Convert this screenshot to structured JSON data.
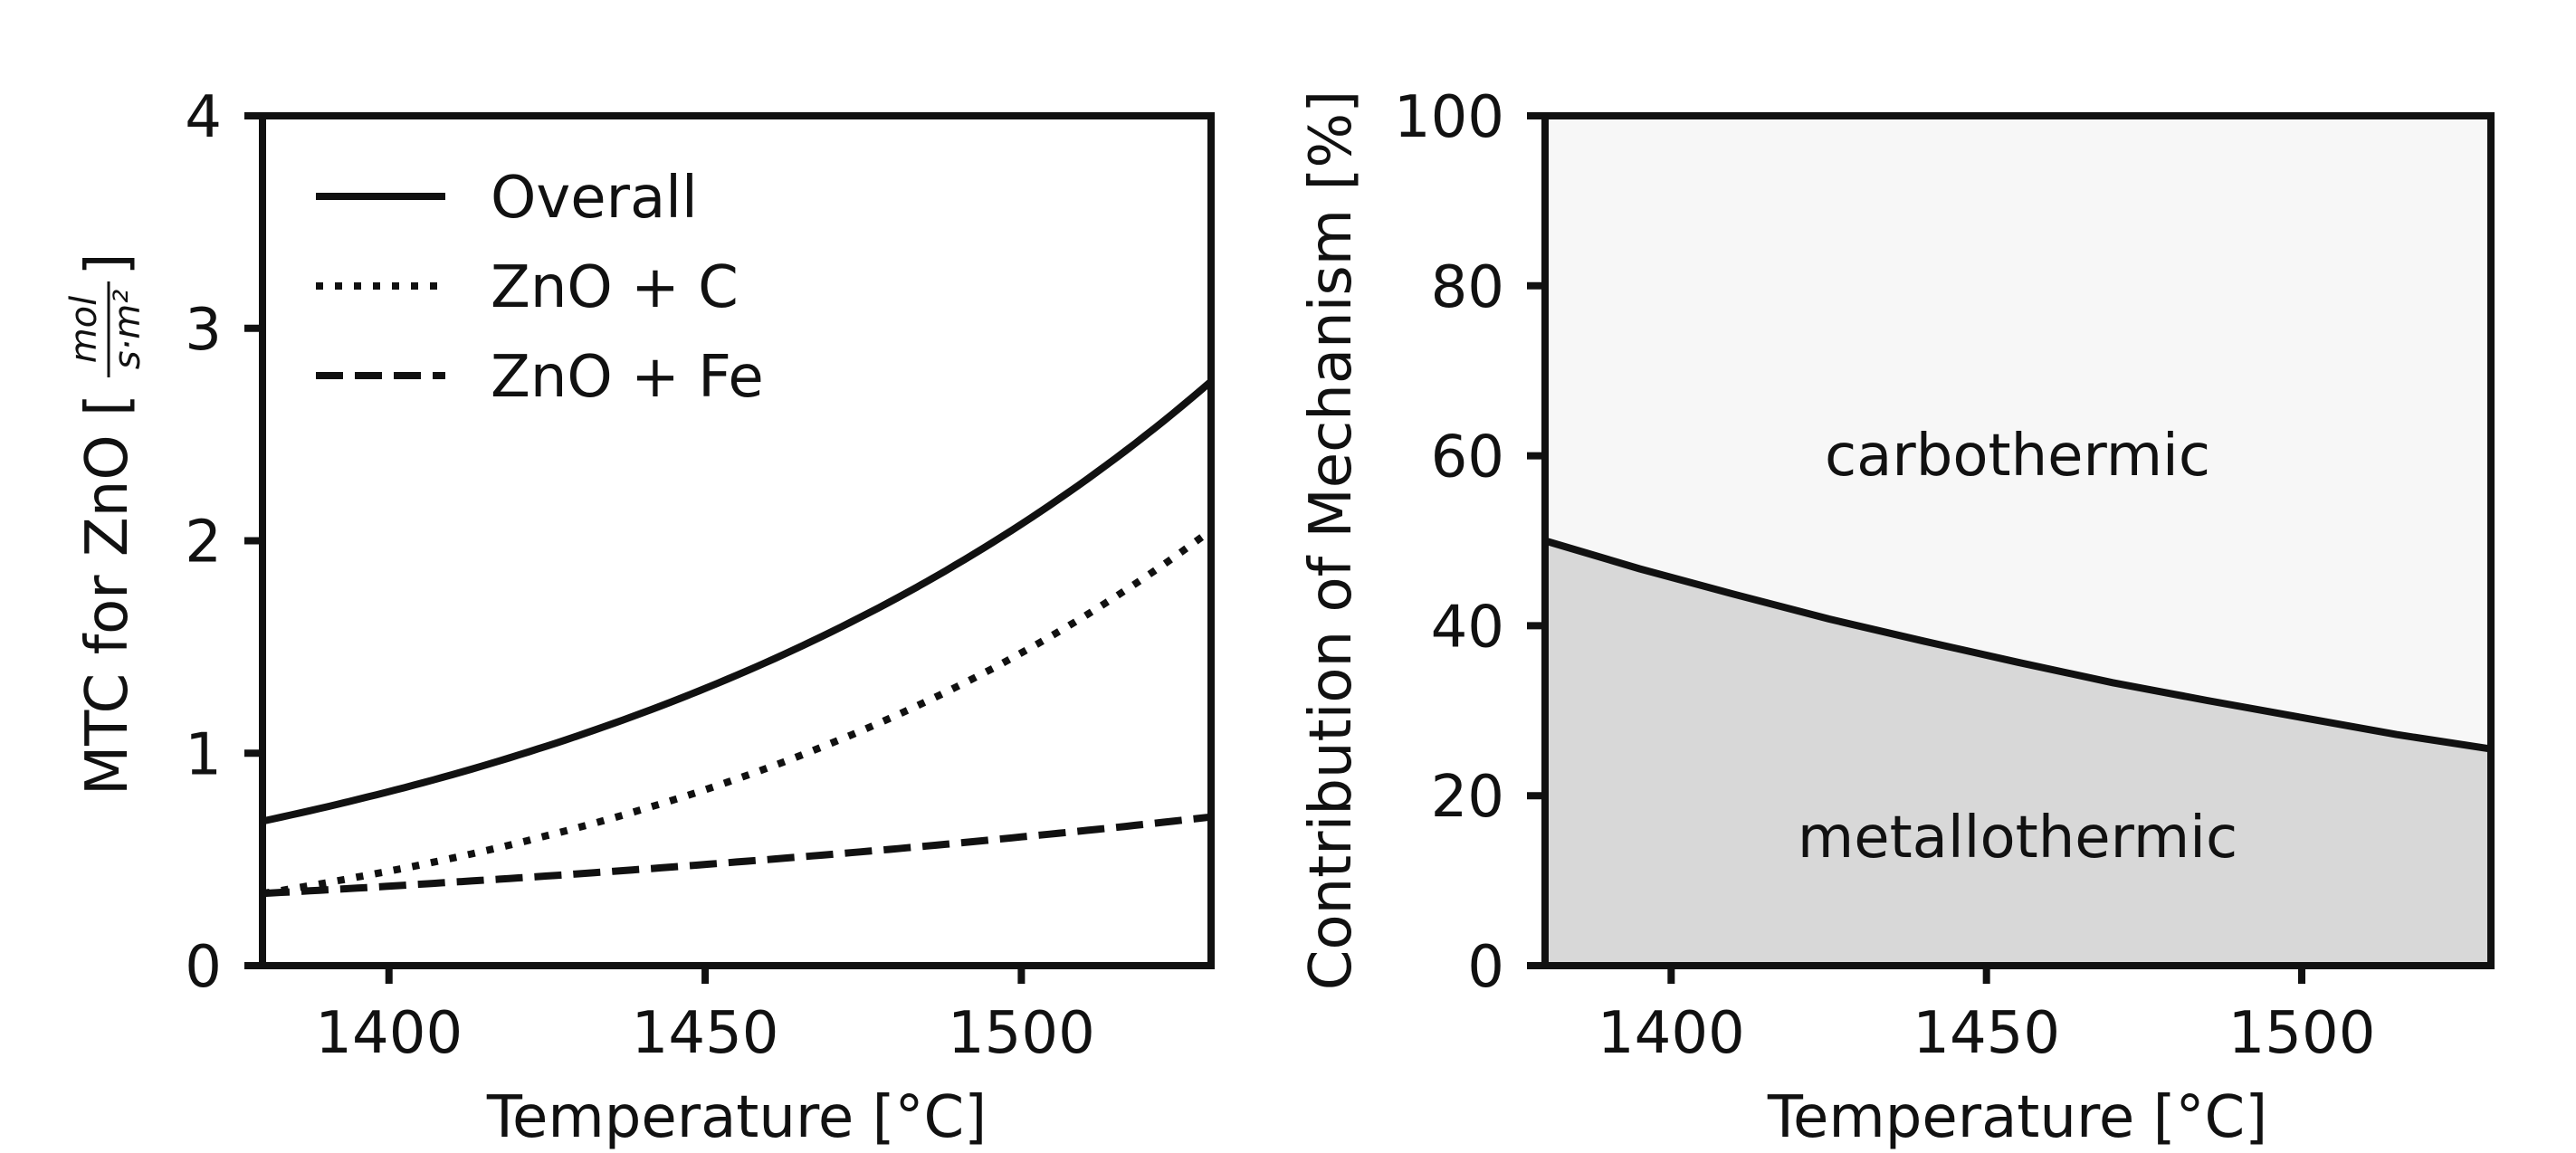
{
  "chart_data": [
    {
      "type": "line",
      "xlabel": "Temperature [°C]",
      "ylabel": {
        "prefix": "MTC for ZnO [",
        "unit_numerator": "mol",
        "unit_denominator": "s·m²",
        "suffix": "]"
      },
      "xlim": [
        1380,
        1530
      ],
      "ylim": [
        0,
        4
      ],
      "xticks": [
        "1400",
        "1450",
        "1500"
      ],
      "yticks": [
        "0",
        "1",
        "2",
        "3",
        "4"
      ],
      "grid": false,
      "legend_position": "top-left",
      "x": [
        1380,
        1395,
        1410,
        1425,
        1440,
        1455,
        1470,
        1485,
        1500,
        1515,
        1530
      ],
      "series": [
        {
          "name": "Overall",
          "style": "solid",
          "values": [
            0.68,
            0.782,
            0.899,
            1.034,
            1.189,
            1.367,
            1.572,
            1.807,
            2.078,
            2.39,
            2.75
          ]
        },
        {
          "name": "ZnO + C",
          "style": "dotted",
          "values": [
            0.34,
            0.417,
            0.506,
            0.612,
            0.735,
            0.879,
            1.048,
            1.244,
            1.472,
            1.739,
            2.05
          ]
        },
        {
          "name": "ZnO + Fe",
          "style": "dashed",
          "values": [
            0.34,
            0.365,
            0.393,
            0.422,
            0.454,
            0.488,
            0.524,
            0.563,
            0.606,
            0.651,
            0.7
          ]
        }
      ],
      "line_color": "#111111"
    },
    {
      "type": "area",
      "xlabel": "Temperature [°C]",
      "ylabel": "Contribution of Mechanism [%]",
      "xlim": [
        1380,
        1530
      ],
      "ylim": [
        0,
        100
      ],
      "xticks": [
        "1400",
        "1450",
        "1500"
      ],
      "yticks": [
        "0",
        "20",
        "40",
        "60",
        "80",
        "100"
      ],
      "grid": false,
      "x": [
        1380,
        1395,
        1410,
        1425,
        1440,
        1455,
        1470,
        1485,
        1500,
        1515,
        1530
      ],
      "boundary": [
        50.0,
        46.7,
        43.7,
        40.8,
        38.2,
        35.7,
        33.3,
        31.2,
        29.2,
        27.2,
        25.5
      ],
      "regions": [
        {
          "label": "metallothermic",
          "color": "#d8d8d8"
        },
        {
          "label": "carbothermic",
          "color": "#f7f7f7"
        }
      ]
    }
  ]
}
